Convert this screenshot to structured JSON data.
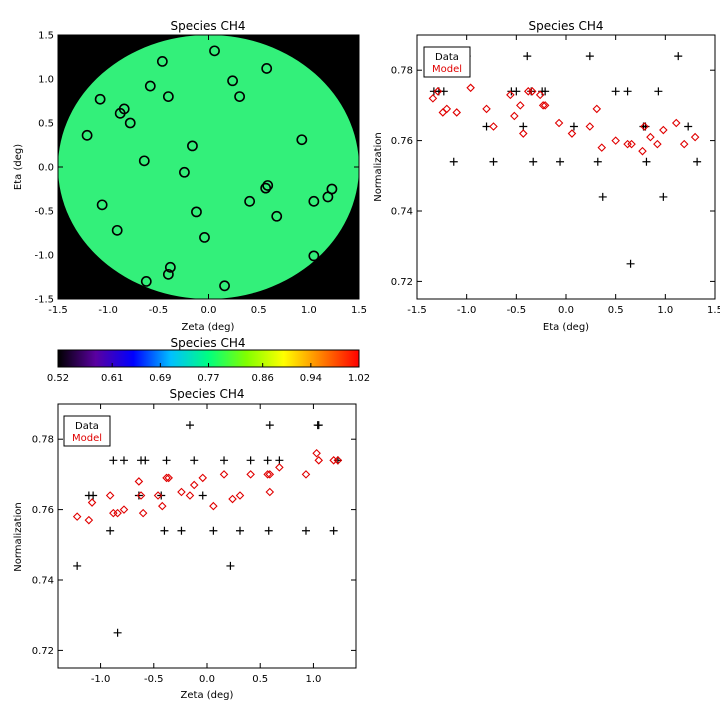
{
  "chart_data": [
    {
      "id": "map",
      "type": "scatter",
      "title": "Species CH4",
      "xlabel": "Zeta (deg)",
      "ylabel": "Eta (deg)",
      "xlim": [
        -1.5,
        1.5
      ],
      "ylim": [
        -1.5,
        1.5
      ],
      "xticks": [
        -1.5,
        -1.0,
        -0.5,
        0.0,
        0.5,
        1.0,
        1.5
      ],
      "yticks": [
        -1.5,
        -1.0,
        -0.5,
        0.0,
        0.5,
        1.0,
        1.5
      ],
      "tick_labels": [
        "-1.5",
        "-1.0",
        "-0.5",
        "0.0",
        "0.5",
        "1.0",
        "1.5"
      ],
      "background_color": "#000000",
      "field_color": "#33f07a",
      "field_radius_deg": 1.5,
      "points": [
        [
          0.06,
          1.32
        ],
        [
          -0.46,
          1.2
        ],
        [
          0.58,
          1.12
        ],
        [
          0.24,
          0.98
        ],
        [
          -1.08,
          0.77
        ],
        [
          -0.58,
          0.92
        ],
        [
          -0.4,
          0.8
        ],
        [
          0.31,
          0.8
        ],
        [
          -0.84,
          0.66
        ],
        [
          -0.88,
          0.61
        ],
        [
          -0.78,
          0.5
        ],
        [
          -1.21,
          0.36
        ],
        [
          0.93,
          0.31
        ],
        [
          -0.16,
          0.24
        ],
        [
          -0.64,
          0.07
        ],
        [
          -0.24,
          -0.06
        ],
        [
          0.59,
          -0.21
        ],
        [
          0.57,
          -0.24
        ],
        [
          1.23,
          -0.25
        ],
        [
          1.19,
          -0.34
        ],
        [
          0.41,
          -0.39
        ],
        [
          1.05,
          -0.39
        ],
        [
          -1.06,
          -0.43
        ],
        [
          -0.12,
          -0.51
        ],
        [
          0.68,
          -0.56
        ],
        [
          -0.91,
          -0.72
        ],
        [
          -0.04,
          -0.8
        ],
        [
          1.05,
          -1.01
        ],
        [
          -0.38,
          -1.14
        ],
        [
          -0.4,
          -1.22
        ],
        [
          -0.62,
          -1.3
        ],
        [
          0.16,
          -1.35
        ]
      ]
    },
    {
      "id": "eta",
      "type": "scatter",
      "title": "Species CH4",
      "xlabel": "Eta (deg)",
      "ylabel": "Normalization",
      "xlim": [
        -1.5,
        1.5
      ],
      "ylim": [
        0.715,
        0.79
      ],
      "xticks": [
        -1.5,
        -1.0,
        -0.5,
        0.0,
        0.5,
        1.0,
        1.5
      ],
      "xtick_labels": [
        "-1.5",
        "-1.0",
        "-0.5",
        "0.0",
        "0.5",
        "1.0",
        "1.5"
      ],
      "yticks": [
        0.72,
        0.74,
        0.76,
        0.78
      ],
      "ytick_labels": [
        "0.72",
        "0.74",
        "0.76",
        "0.78"
      ],
      "legend": [
        "Data",
        "Model"
      ],
      "legend_location": "top-left",
      "series": [
        {
          "name": "Data",
          "marker": "plus",
          "color": "#000000",
          "points": [
            [
              -1.33,
              0.774
            ],
            [
              -1.28,
              0.774
            ],
            [
              -1.23,
              0.774
            ],
            [
              -1.13,
              0.754
            ],
            [
              -1.0,
              0.784
            ],
            [
              -0.8,
              0.764
            ],
            [
              -0.73,
              0.754
            ],
            [
              -0.55,
              0.774
            ],
            [
              -0.5,
              0.774
            ],
            [
              -0.43,
              0.764
            ],
            [
              -0.39,
              0.784
            ],
            [
              -0.35,
              0.774
            ],
            [
              -0.33,
              0.754
            ],
            [
              -0.24,
              0.774
            ],
            [
              -0.21,
              0.774
            ],
            [
              -0.06,
              0.754
            ],
            [
              0.08,
              0.764
            ],
            [
              0.24,
              0.784
            ],
            [
              0.32,
              0.754
            ],
            [
              0.37,
              0.744
            ],
            [
              0.5,
              0.774
            ],
            [
              0.62,
              0.774
            ],
            [
              0.65,
              0.725
            ],
            [
              0.78,
              0.764
            ],
            [
              0.8,
              0.764
            ],
            [
              0.81,
              0.754
            ],
            [
              0.93,
              0.774
            ],
            [
              0.98,
              0.744
            ],
            [
              1.13,
              0.784
            ],
            [
              1.23,
              0.764
            ],
            [
              1.32,
              0.754
            ]
          ]
        },
        {
          "name": "Model",
          "marker": "diamond",
          "color": "#e00000",
          "points": [
            [
              -1.34,
              0.772
            ],
            [
              -1.29,
              0.774
            ],
            [
              -1.24,
              0.768
            ],
            [
              -1.2,
              0.769
            ],
            [
              -1.1,
              0.768
            ],
            [
              -0.96,
              0.775
            ],
            [
              -0.8,
              0.769
            ],
            [
              -0.73,
              0.764
            ],
            [
              -0.56,
              0.773
            ],
            [
              -0.52,
              0.767
            ],
            [
              -0.46,
              0.77
            ],
            [
              -0.43,
              0.762
            ],
            [
              -0.38,
              0.774
            ],
            [
              -0.34,
              0.774
            ],
            [
              -0.26,
              0.773
            ],
            [
              -0.23,
              0.77
            ],
            [
              -0.21,
              0.77
            ],
            [
              -0.07,
              0.765
            ],
            [
              0.06,
              0.762
            ],
            [
              0.24,
              0.764
            ],
            [
              0.31,
              0.769
            ],
            [
              0.36,
              0.758
            ],
            [
              0.5,
              0.76
            ],
            [
              0.62,
              0.759
            ],
            [
              0.66,
              0.759
            ],
            [
              0.77,
              0.757
            ],
            [
              0.79,
              0.764
            ],
            [
              0.85,
              0.761
            ],
            [
              0.92,
              0.759
            ],
            [
              0.98,
              0.763
            ],
            [
              1.11,
              0.765
            ],
            [
              1.19,
              0.759
            ],
            [
              1.3,
              0.761
            ]
          ]
        }
      ]
    },
    {
      "id": "zeta",
      "type": "scatter",
      "title": "Species CH4",
      "xlabel": "Zeta (deg)",
      "ylabel": "Normalization",
      "xlim": [
        -1.4,
        1.4
      ],
      "ylim": [
        0.715,
        0.79
      ],
      "xticks": [
        -1.0,
        -0.5,
        0.0,
        0.5,
        1.0
      ],
      "xtick_labels": [
        "-1.0",
        "-0.5",
        "0.0",
        "0.5",
        "1.0"
      ],
      "yticks": [
        0.72,
        0.74,
        0.76,
        0.78
      ],
      "ytick_labels": [
        "0.72",
        "0.74",
        "0.76",
        "0.78"
      ],
      "legend": [
        "Data",
        "Model"
      ],
      "legend_location": "top-left",
      "series": [
        {
          "name": "Data",
          "marker": "plus",
          "color": "#000000",
          "points": [
            [
              -1.22,
              0.744
            ],
            [
              -1.11,
              0.764
            ],
            [
              -1.07,
              0.764
            ],
            [
              -0.91,
              0.754
            ],
            [
              -0.88,
              0.774
            ],
            [
              -0.84,
              0.725
            ],
            [
              -0.78,
              0.774
            ],
            [
              -0.62,
              0.774
            ],
            [
              -0.64,
              0.764
            ],
            [
              -0.58,
              0.774
            ],
            [
              -0.43,
              0.764
            ],
            [
              -0.4,
              0.754
            ],
            [
              -0.38,
              0.774
            ],
            [
              -0.24,
              0.754
            ],
            [
              -0.16,
              0.784
            ],
            [
              -0.12,
              0.774
            ],
            [
              -0.04,
              0.764
            ],
            [
              0.06,
              0.754
            ],
            [
              0.16,
              0.774
            ],
            [
              0.22,
              0.744
            ],
            [
              0.31,
              0.754
            ],
            [
              0.41,
              0.774
            ],
            [
              0.57,
              0.774
            ],
            [
              0.59,
              0.784
            ],
            [
              0.58,
              0.754
            ],
            [
              0.68,
              0.774
            ],
            [
              0.93,
              0.754
            ],
            [
              1.04,
              0.784
            ],
            [
              1.05,
              0.784
            ],
            [
              1.19,
              0.754
            ],
            [
              1.23,
              0.774
            ]
          ]
        },
        {
          "name": "Model",
          "marker": "diamond",
          "color": "#e00000",
          "points": [
            [
              -1.22,
              0.758
            ],
            [
              -1.11,
              0.757
            ],
            [
              -1.08,
              0.762
            ],
            [
              -0.91,
              0.764
            ],
            [
              -0.88,
              0.759
            ],
            [
              -0.84,
              0.759
            ],
            [
              -0.78,
              0.76
            ],
            [
              -0.64,
              0.768
            ],
            [
              -0.62,
              0.764
            ],
            [
              -0.6,
              0.759
            ],
            [
              -0.46,
              0.764
            ],
            [
              -0.42,
              0.761
            ],
            [
              -0.38,
              0.769
            ],
            [
              -0.36,
              0.769
            ],
            [
              -0.24,
              0.765
            ],
            [
              -0.16,
              0.764
            ],
            [
              -0.12,
              0.767
            ],
            [
              -0.04,
              0.769
            ],
            [
              0.06,
              0.761
            ],
            [
              0.16,
              0.77
            ],
            [
              0.24,
              0.763
            ],
            [
              0.31,
              0.764
            ],
            [
              0.41,
              0.77
            ],
            [
              0.57,
              0.77
            ],
            [
              0.59,
              0.77
            ],
            [
              0.59,
              0.765
            ],
            [
              0.68,
              0.772
            ],
            [
              0.93,
              0.77
            ],
            [
              1.03,
              0.776
            ],
            [
              1.05,
              0.774
            ],
            [
              1.19,
              0.774
            ],
            [
              1.23,
              0.774
            ]
          ]
        }
      ]
    },
    {
      "id": "colorbar",
      "type": "heatmap",
      "title": "Species CH4",
      "range": [
        0.52,
        1.02
      ],
      "ticks": [
        0.52,
        0.61,
        0.69,
        0.77,
        0.86,
        0.94,
        1.02
      ],
      "tick_labels": [
        "0.52",
        "0.61",
        "0.69",
        "0.77",
        "0.86",
        "0.94",
        "1.02"
      ],
      "colors": [
        "#000000",
        "#5a00a0",
        "#0000ff",
        "#00c0ff",
        "#00ff80",
        "#80ff00",
        "#ffff00",
        "#ff8000",
        "#ff0000"
      ]
    }
  ]
}
